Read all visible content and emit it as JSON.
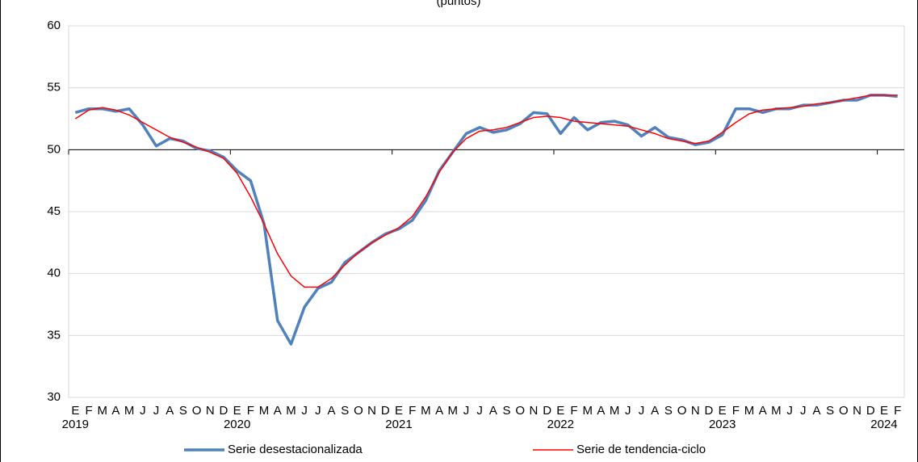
{
  "chart_data": {
    "type": "line",
    "title": "(puntos)",
    "categories": [
      "E",
      "F",
      "M",
      "A",
      "M",
      "J",
      "J",
      "A",
      "S",
      "O",
      "N",
      "D",
      "E",
      "F",
      "M",
      "A",
      "M",
      "J",
      "J",
      "A",
      "S",
      "O",
      "N",
      "D",
      "E",
      "F",
      "M",
      "A",
      "M",
      "J",
      "J",
      "A",
      "S",
      "O",
      "N",
      "D",
      "E",
      "F",
      "M",
      "A",
      "M",
      "J",
      "J",
      "A",
      "S",
      "O",
      "N",
      "D",
      "E",
      "F",
      "M",
      "A",
      "M",
      "J",
      "J",
      "A",
      "S",
      "O",
      "N",
      "D",
      "E",
      "F"
    ],
    "year_labels": [
      "2019",
      null,
      null,
      null,
      null,
      null,
      null,
      null,
      null,
      null,
      null,
      null,
      "2020",
      null,
      null,
      null,
      null,
      null,
      null,
      null,
      null,
      null,
      null,
      null,
      "2021",
      null,
      null,
      null,
      null,
      null,
      null,
      null,
      null,
      null,
      null,
      null,
      "2022",
      null,
      null,
      null,
      null,
      null,
      null,
      null,
      null,
      null,
      null,
      null,
      "2023",
      null,
      null,
      null,
      null,
      null,
      null,
      null,
      null,
      null,
      null,
      null,
      "2024",
      null
    ],
    "series": [
      {
        "name": "Serie desestacionalizada",
        "color": "#4f81bd",
        "values": [
          53.0,
          53.3,
          53.3,
          53.1,
          53.3,
          52.0,
          50.3,
          50.9,
          50.7,
          50.1,
          49.9,
          49.4,
          48.3,
          47.5,
          44.0,
          36.2,
          34.3,
          37.3,
          38.8,
          39.3,
          40.9,
          41.7,
          42.5,
          43.2,
          43.6,
          44.3,
          45.9,
          48.3,
          49.8,
          51.3,
          51.8,
          51.4,
          51.6,
          52.1,
          53.0,
          52.9,
          51.3,
          52.6,
          51.6,
          52.2,
          52.3,
          52.0,
          51.1,
          51.8,
          51.0,
          50.8,
          50.4,
          50.6,
          51.2,
          53.3,
          53.3,
          53.0,
          53.3,
          53.3,
          53.6,
          53.6,
          53.8,
          54.0,
          54.0,
          54.4,
          54.4,
          54.3
        ]
      },
      {
        "name": "Serie de tendencia-ciclo",
        "color": "#ff0000",
        "values": [
          52.5,
          53.2,
          53.4,
          53.2,
          52.8,
          52.2,
          51.6,
          51.0,
          50.6,
          50.2,
          49.8,
          49.3,
          48.1,
          46.2,
          44.0,
          41.6,
          39.8,
          38.9,
          38.9,
          39.6,
          40.7,
          41.7,
          42.5,
          43.1,
          43.7,
          44.6,
          46.2,
          48.2,
          49.8,
          50.9,
          51.5,
          51.6,
          51.8,
          52.2,
          52.6,
          52.7,
          52.6,
          52.3,
          52.2,
          52.1,
          52.0,
          51.9,
          51.6,
          51.3,
          50.9,
          50.7,
          50.5,
          50.7,
          51.4,
          52.2,
          52.9,
          53.2,
          53.3,
          53.4,
          53.5,
          53.7,
          53.8,
          54.0,
          54.2,
          54.4,
          54.4,
          54.4
        ]
      }
    ],
    "ylim": [
      30,
      60
    ],
    "yticks": [
      30,
      35,
      40,
      45,
      50,
      55,
      60
    ],
    "xaxis_crosses": 50,
    "grid": true,
    "legend": "bottom"
  }
}
